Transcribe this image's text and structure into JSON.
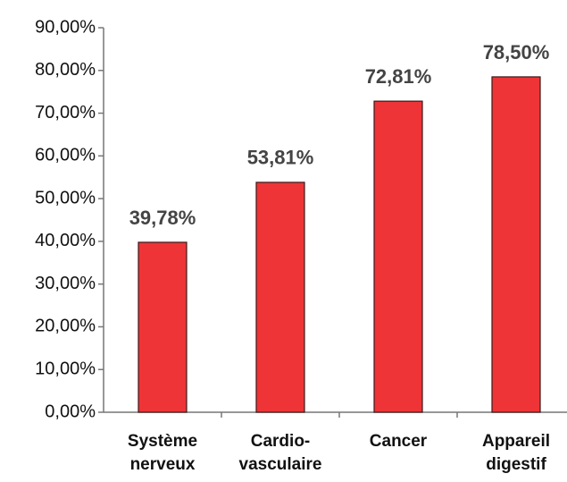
{
  "chart_data": {
    "type": "bar",
    "categories": [
      "Système nerveux",
      "Cardio-vasculaire",
      "Cancer",
      "Appareil digestif"
    ],
    "values": [
      39.78,
      53.81,
      72.81,
      78.5
    ],
    "value_labels": [
      "39,78%",
      "53,81%",
      "72,81%",
      "78,50%"
    ],
    "color": "#ee3436",
    "ylim": [
      0,
      90
    ],
    "yticks": [
      {
        "value": 0,
        "label": "0,00%"
      },
      {
        "value": 10,
        "label": "10,00%"
      },
      {
        "value": 20,
        "label": "20,00%"
      },
      {
        "value": 30,
        "label": "30,00%"
      },
      {
        "value": 40,
        "label": "40,00%"
      },
      {
        "value": 50,
        "label": "50,00%"
      },
      {
        "value": 60,
        "label": "60,00%"
      },
      {
        "value": 70,
        "label": "70,00%"
      },
      {
        "value": 80,
        "label": "80,00%"
      },
      {
        "value": 90,
        "label": "90,00%"
      }
    ],
    "grid": false
  }
}
